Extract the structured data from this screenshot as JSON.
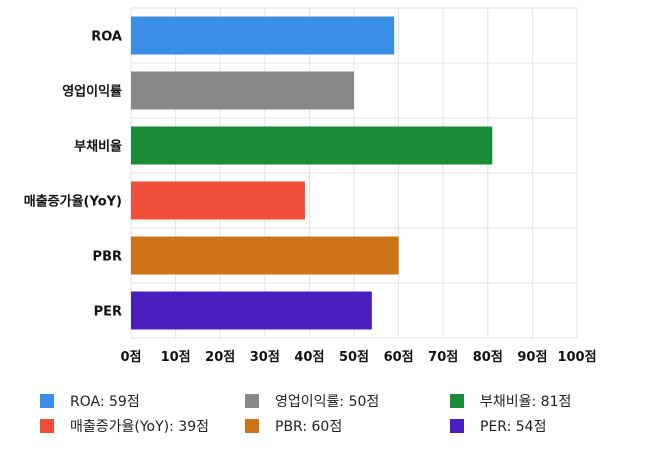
{
  "chart_data": {
    "type": "bar",
    "orientation": "horizontal",
    "categories": [
      "ROA",
      "영업이익률",
      "부채비율",
      "매출증가율(YoY)",
      "PBR",
      "PER"
    ],
    "values": [
      59,
      50,
      81,
      39,
      60,
      54
    ],
    "colors": [
      "#3b8ee6",
      "#888888",
      "#1a8c37",
      "#ee4f38",
      "#cc7417",
      "#4c1ec0"
    ],
    "xlim": [
      0,
      100
    ],
    "xticks": [
      "0점",
      "10점",
      "20점",
      "30점",
      "40점",
      "50점",
      "60점",
      "70점",
      "80점",
      "90점",
      "100점"
    ],
    "grid": true,
    "legend_position": "bottom"
  },
  "legend": [
    {
      "label": "ROA: 59점",
      "color": "#3b8ee6"
    },
    {
      "label": "영업이익률: 50점",
      "color": "#888888"
    },
    {
      "label": "부채비율: 81점",
      "color": "#1a8c37"
    },
    {
      "label": "매출증가율(YoY): 39점",
      "color": "#ee4f38"
    },
    {
      "label": "PBR: 60점",
      "color": "#cc7417"
    },
    {
      "label": "PER: 54점",
      "color": "#4c1ec0"
    }
  ]
}
